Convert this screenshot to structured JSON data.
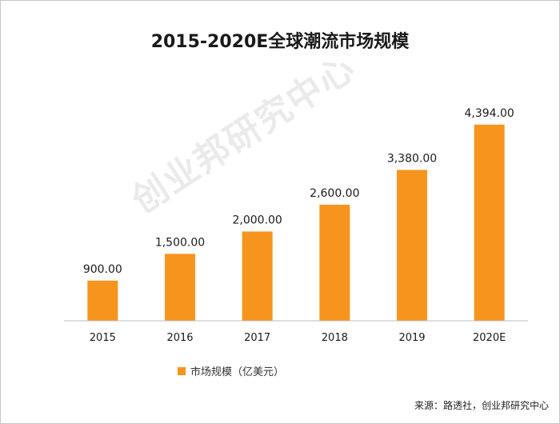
{
  "chart_data": {
    "type": "bar",
    "title": "2015-2020E全球潮流市场规模",
    "categories": [
      "2015",
      "2016",
      "2017",
      "2018",
      "2019",
      "2020E"
    ],
    "series": [
      {
        "name": "市场规模（亿美元）",
        "values": [
          900,
          1500,
          2000,
          2600,
          3380,
          4394
        ]
      }
    ],
    "data_labels": [
      "900.00",
      "1,500.00",
      "2,000.00",
      "2,600.00",
      "3,380.00",
      "4,394.00"
    ],
    "ylim": [
      0,
      5000
    ],
    "grid": false,
    "legend_position": "bottom",
    "bar_color": "#f7941d"
  },
  "legend_label": "市场规模（亿美元）",
  "source_text": "来源：路透社，创业邦研究中心",
  "watermark_text": "创业邦研究中心"
}
